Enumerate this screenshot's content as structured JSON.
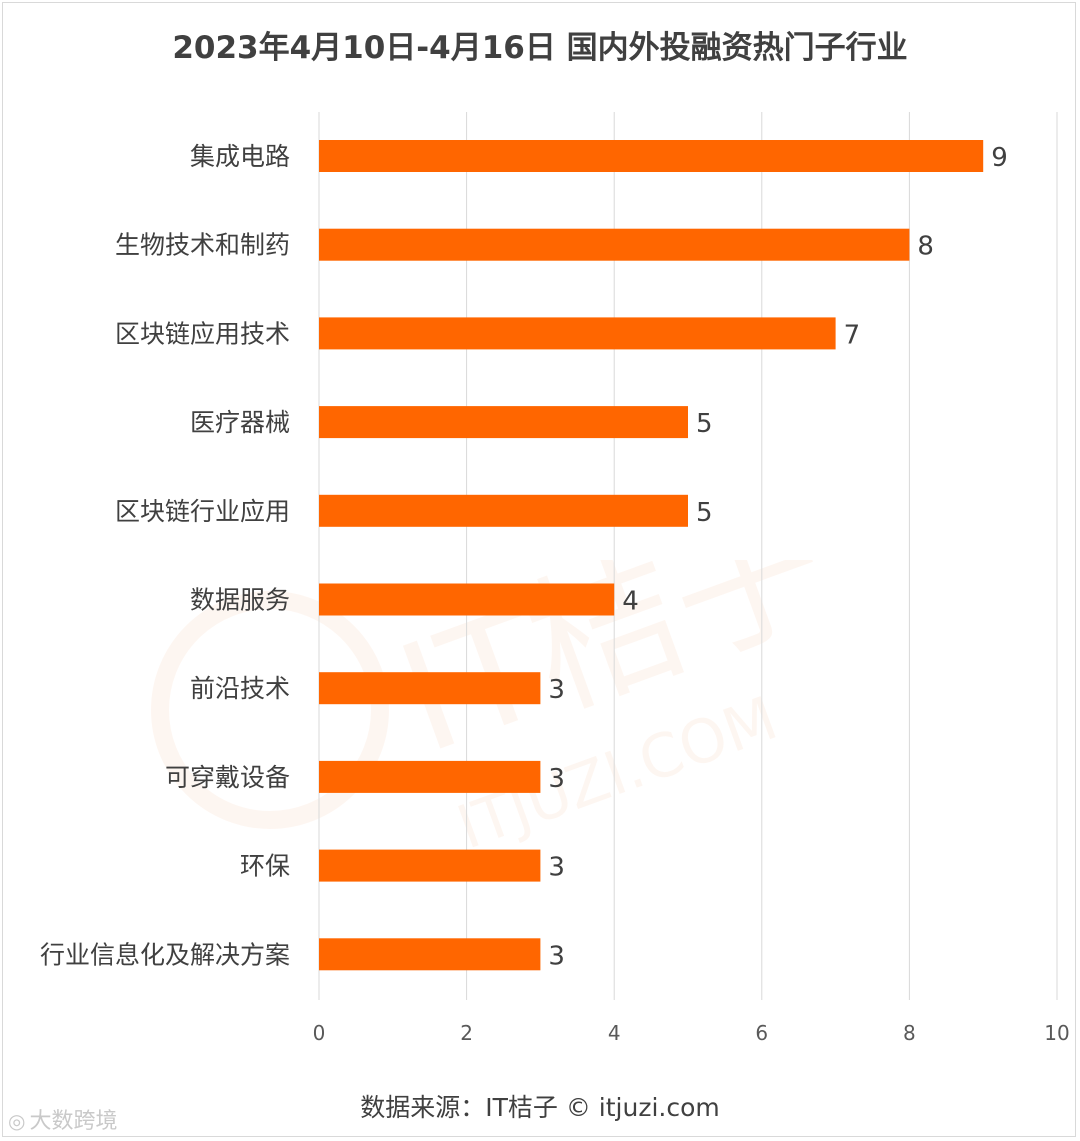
{
  "title": "2023年4月10日-4月16日 国内外投融资热门子行业",
  "source": "数据来源：IT桔子 © itjuzi.com",
  "watermark": {
    "corner_text": "大数跨境",
    "brand_text": "IT桔子",
    "brand_url": "ITJUZI.COM",
    "corner_icon": "camera-logo-icon"
  },
  "colors": {
    "bar": "#FF6600",
    "text": "#404040",
    "axis_text": "#595959",
    "grid": "#D9D9D9",
    "watermark": "#F4A06A"
  },
  "chart_data": {
    "type": "bar",
    "orientation": "horizontal",
    "title": "2023年4月10日-4月16日 国内外投融资热门子行业",
    "categories": [
      "集成电路",
      "生物技术和制药",
      "区块链应用技术",
      "医疗器械",
      "区块链行业应用",
      "数据服务",
      "前沿技术",
      "可穿戴设备",
      "环保",
      "行业信息化及解决方案"
    ],
    "values": [
      9,
      8,
      7,
      5,
      5,
      4,
      3,
      3,
      3,
      3
    ],
    "xlim": [
      0,
      10
    ],
    "xticks": [
      0,
      2,
      4,
      6,
      8,
      10
    ],
    "grid": true,
    "data_labels": true,
    "legend": "none"
  }
}
